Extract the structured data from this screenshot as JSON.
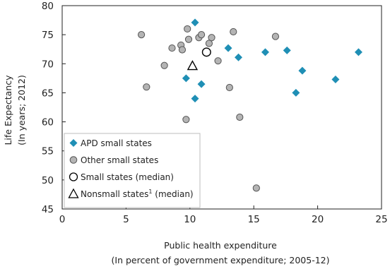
{
  "chart_data": {
    "type": "scatter",
    "title": "",
    "xlabel": "Public health expenditure",
    "xlabel_sub": "(In percent of government expenditure; 2005-12)",
    "ylabel": "Life Expectancy",
    "ylabel_sub": "(In years; 2012)",
    "xlim": [
      0,
      25
    ],
    "ylim": [
      45,
      80
    ],
    "x_ticks": [
      0,
      5,
      10,
      15,
      20,
      25
    ],
    "y_ticks": [
      45,
      50,
      55,
      60,
      65,
      70,
      75,
      80
    ],
    "grid": false,
    "legend_placement": "bottom-left",
    "series": [
      {
        "name": "APD small states",
        "marker": "diamond",
        "color": "#1f8fb5",
        "points": [
          {
            "x": 10.4,
            "y": 77.1
          },
          {
            "x": 13.0,
            "y": 72.7
          },
          {
            "x": 13.8,
            "y": 71.1
          },
          {
            "x": 15.9,
            "y": 72.0
          },
          {
            "x": 17.6,
            "y": 72.3
          },
          {
            "x": 23.2,
            "y": 72.0
          },
          {
            "x": 18.8,
            "y": 68.8
          },
          {
            "x": 9.7,
            "y": 67.5
          },
          {
            "x": 10.9,
            "y": 66.5
          },
          {
            "x": 21.4,
            "y": 67.3
          },
          {
            "x": 18.3,
            "y": 65.0
          },
          {
            "x": 10.4,
            "y": 64.0
          }
        ]
      },
      {
        "name": "Other small states",
        "marker": "circle",
        "color": "#b4b4b4",
        "points": [
          {
            "x": 6.2,
            "y": 75.0
          },
          {
            "x": 9.8,
            "y": 76.0
          },
          {
            "x": 10.7,
            "y": 74.5
          },
          {
            "x": 10.9,
            "y": 75.0
          },
          {
            "x": 11.7,
            "y": 74.5
          },
          {
            "x": 13.4,
            "y": 75.5
          },
          {
            "x": 16.7,
            "y": 74.7
          },
          {
            "x": 9.9,
            "y": 74.2
          },
          {
            "x": 9.3,
            "y": 73.2
          },
          {
            "x": 8.6,
            "y": 72.7
          },
          {
            "x": 9.4,
            "y": 72.4
          },
          {
            "x": 11.5,
            "y": 73.5
          },
          {
            "x": 12.2,
            "y": 70.5
          },
          {
            "x": 8.0,
            "y": 69.7
          },
          {
            "x": 6.6,
            "y": 66.0
          },
          {
            "x": 13.1,
            "y": 65.9
          },
          {
            "x": 9.7,
            "y": 60.4
          },
          {
            "x": 13.9,
            "y": 60.8
          },
          {
            "x": 15.2,
            "y": 48.6
          }
        ]
      },
      {
        "name": "Small states (median)",
        "marker": "open-circle",
        "color": "#000000",
        "points": [
          {
            "x": 11.3,
            "y": 72.0
          }
        ]
      },
      {
        "name": "Nonsmall states",
        "name_superscript": "1",
        "name_suffix": " (median)",
        "marker": "open-triangle",
        "color": "#000000",
        "points": [
          {
            "x": 10.2,
            "y": 69.6
          }
        ]
      }
    ]
  }
}
